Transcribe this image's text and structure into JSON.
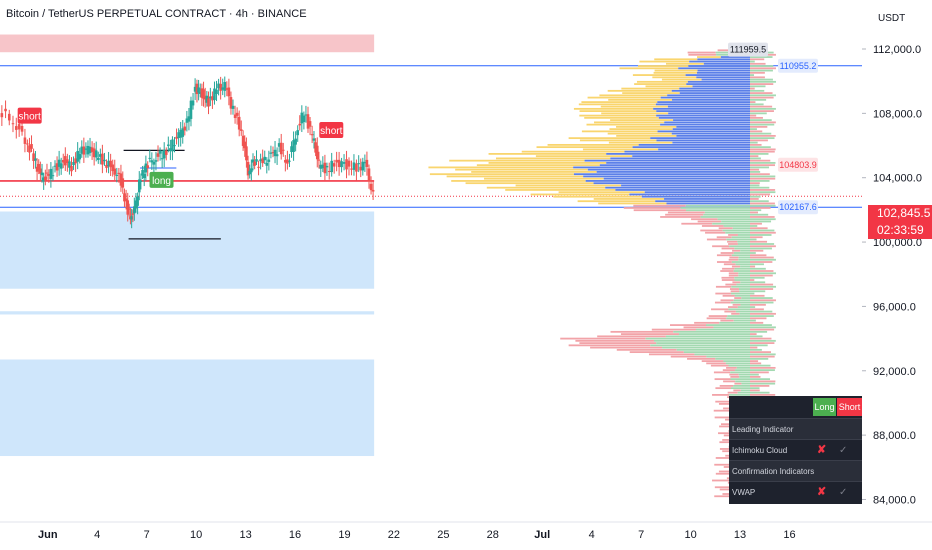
{
  "header": {
    "title": "Bitcoin / TetherUS PERPETUAL CONTRACT · 4h · BINANCE",
    "unit": "USDT"
  },
  "chart_data": {
    "type": "candlestick",
    "title": "Bitcoin / TetherUS PERPETUAL CONTRACT · 4h · BINANCE",
    "ylabel": "USDT",
    "ylim": [
      82600,
      114300
    ],
    "y_ticks": [
      "112,000.0",
      "108,000.0",
      "104,000.0",
      "100,000.0",
      "96,000.0",
      "92,000.0",
      "88,000.0",
      "84,000.0"
    ],
    "y_tick_values": [
      112000,
      108000,
      104000,
      100000,
      96000,
      92000,
      88000,
      84000
    ],
    "x_ticks": [
      "Jun",
      "4",
      "7",
      "10",
      "13",
      "16",
      "19",
      "22",
      "25",
      "28",
      "Jul",
      "4",
      "7",
      "10",
      "13",
      "16"
    ],
    "x_tick_days": [
      1,
      4,
      7,
      10,
      13,
      16,
      19,
      22,
      25,
      28,
      31,
      34,
      37,
      40,
      43,
      46
    ],
    "xlim_days": [
      -1.9,
      50.4
    ],
    "current_price": "102,845.5",
    "current_price_value": 102845.5,
    "countdown": "02:33:59",
    "price_labels": [
      {
        "text": "111959.5",
        "value": 111959.5
      },
      {
        "text": "110955.2",
        "value": 110955.2
      },
      {
        "text": "104803.9",
        "value": 104803.9
      },
      {
        "text": "102167.6",
        "value": 102167.6
      }
    ],
    "horizontal_lines": [
      {
        "value": 110955.2,
        "color": "#2962ff"
      },
      {
        "value": 102167.6,
        "color": "#2962ff"
      },
      {
        "value": 103800,
        "color": "#f23645"
      }
    ],
    "zones": [
      {
        "from": 111800,
        "to": 112900,
        "day_end": 20.8,
        "color": "#f7c5c9"
      },
      {
        "from": 97100,
        "to": 101900,
        "day_end": 20.8,
        "color": "#cfe6fb"
      },
      {
        "from": 95500,
        "to": 95700,
        "day_end": 20.8,
        "color": "#cfe6fb"
      },
      {
        "from": 86700,
        "to": 92700,
        "day_end": 20.8,
        "color": "#cfe6fb"
      }
    ],
    "signals": [
      {
        "label": "short",
        "day": -0.1,
        "value": 107800,
        "kind": "short"
      },
      {
        "label": "short",
        "day": 18.2,
        "value": 106900,
        "kind": "short"
      },
      {
        "label": "long",
        "day": 7.9,
        "value": 103800,
        "kind": "long"
      }
    ],
    "series_close": [
      {
        "day": -1.9,
        "close": 108200
      },
      {
        "day": -1.0,
        "close": 107500
      },
      {
        "day": -0.3,
        "close": 106400
      },
      {
        "day": 0.2,
        "close": 105200
      },
      {
        "day": 0.6,
        "close": 104100
      },
      {
        "day": 1.0,
        "close": 104000
      },
      {
        "day": 1.5,
        "close": 104600
      },
      {
        "day": 2.0,
        "close": 105100
      },
      {
        "day": 2.5,
        "close": 104700
      },
      {
        "day": 3.0,
        "close": 105600
      },
      {
        "day": 3.5,
        "close": 105800
      },
      {
        "day": 4.0,
        "close": 105400
      },
      {
        "day": 4.5,
        "close": 105000
      },
      {
        "day": 5.0,
        "close": 104600
      },
      {
        "day": 5.5,
        "close": 103800
      },
      {
        "day": 5.9,
        "close": 101800
      },
      {
        "day": 6.2,
        "close": 101500
      },
      {
        "day": 6.6,
        "close": 103600
      },
      {
        "day": 7.0,
        "close": 104800
      },
      {
        "day": 7.5,
        "close": 105200
      },
      {
        "day": 8.0,
        "close": 105500
      },
      {
        "day": 8.5,
        "close": 105900
      },
      {
        "day": 9.0,
        "close": 106600
      },
      {
        "day": 9.5,
        "close": 107400
      },
      {
        "day": 10.0,
        "close": 109600
      },
      {
        "day": 10.4,
        "close": 109200
      },
      {
        "day": 10.8,
        "close": 108700
      },
      {
        "day": 11.3,
        "close": 109500
      },
      {
        "day": 11.8,
        "close": 109700
      },
      {
        "day": 12.3,
        "close": 108200
      },
      {
        "day": 12.8,
        "close": 106900
      },
      {
        "day": 13.2,
        "close": 104400
      },
      {
        "day": 13.6,
        "close": 105000
      },
      {
        "day": 14.1,
        "close": 104900
      },
      {
        "day": 14.6,
        "close": 105300
      },
      {
        "day": 15.1,
        "close": 105900
      },
      {
        "day": 15.6,
        "close": 104900
      },
      {
        "day": 16.1,
        "close": 106700
      },
      {
        "day": 16.6,
        "close": 108100
      },
      {
        "day": 17.1,
        "close": 106600
      },
      {
        "day": 17.5,
        "close": 104800
      },
      {
        "day": 18.0,
        "close": 104500
      },
      {
        "day": 18.6,
        "close": 105000
      },
      {
        "day": 19.2,
        "close": 104800
      },
      {
        "day": 19.8,
        "close": 104600
      },
      {
        "day": 20.3,
        "close": 104900
      },
      {
        "day": 20.8,
        "close": 102850
      }
    ]
  },
  "table": {
    "long_label": "Long",
    "short_label": "Short",
    "leading_header": "Leading Indicator",
    "leading_name": "Ichimoku Cloud",
    "confirm_header": "Confirmation Indicators",
    "confirm_name": "VWAP",
    "cross": "✘",
    "check": "✓",
    "long_color": "#4caf50",
    "short_color": "#f23645"
  },
  "colors": {
    "up": "#26a69a",
    "down": "#ef5350",
    "profile_yellow": "#f9d56e",
    "profile_blue": "#5b7fe8",
    "profile_red": "#f2a3a8",
    "profile_green": "#a3d9b1"
  }
}
